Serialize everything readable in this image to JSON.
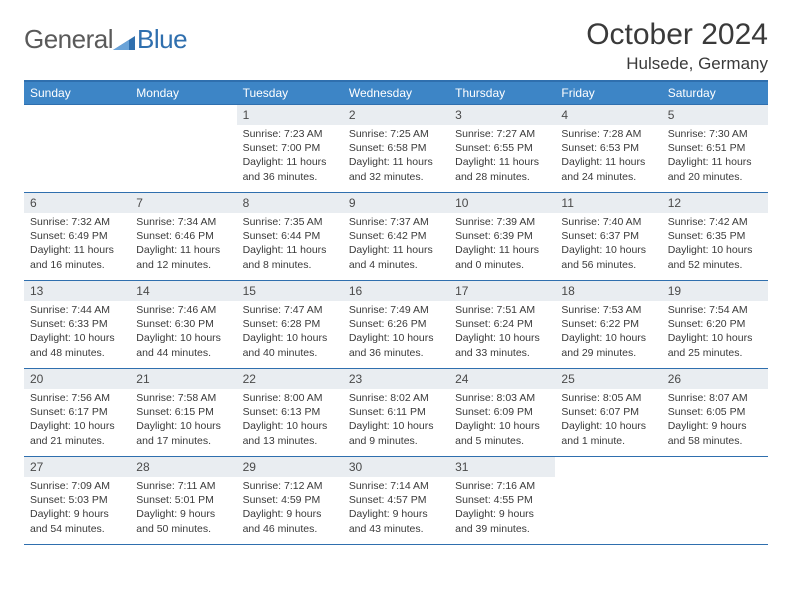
{
  "brand": {
    "part1": "General",
    "part2": "Blue"
  },
  "title": "October 2024",
  "location": "Hulsede, Germany",
  "colors": {
    "accent": "#3d85c6",
    "rule": "#2f6fae",
    "dayhdr_bg": "#e9edf1",
    "text": "#3a3a3a"
  },
  "weekdays": [
    "Sunday",
    "Monday",
    "Tuesday",
    "Wednesday",
    "Thursday",
    "Friday",
    "Saturday"
  ],
  "weeks": [
    [
      null,
      null,
      {
        "n": "1",
        "sr": "Sunrise: 7:23 AM",
        "ss": "Sunset: 7:00 PM",
        "dl": "Daylight: 11 hours and 36 minutes."
      },
      {
        "n": "2",
        "sr": "Sunrise: 7:25 AM",
        "ss": "Sunset: 6:58 PM",
        "dl": "Daylight: 11 hours and 32 minutes."
      },
      {
        "n": "3",
        "sr": "Sunrise: 7:27 AM",
        "ss": "Sunset: 6:55 PM",
        "dl": "Daylight: 11 hours and 28 minutes."
      },
      {
        "n": "4",
        "sr": "Sunrise: 7:28 AM",
        "ss": "Sunset: 6:53 PM",
        "dl": "Daylight: 11 hours and 24 minutes."
      },
      {
        "n": "5",
        "sr": "Sunrise: 7:30 AM",
        "ss": "Sunset: 6:51 PM",
        "dl": "Daylight: 11 hours and 20 minutes."
      }
    ],
    [
      {
        "n": "6",
        "sr": "Sunrise: 7:32 AM",
        "ss": "Sunset: 6:49 PM",
        "dl": "Daylight: 11 hours and 16 minutes."
      },
      {
        "n": "7",
        "sr": "Sunrise: 7:34 AM",
        "ss": "Sunset: 6:46 PM",
        "dl": "Daylight: 11 hours and 12 minutes."
      },
      {
        "n": "8",
        "sr": "Sunrise: 7:35 AM",
        "ss": "Sunset: 6:44 PM",
        "dl": "Daylight: 11 hours and 8 minutes."
      },
      {
        "n": "9",
        "sr": "Sunrise: 7:37 AM",
        "ss": "Sunset: 6:42 PM",
        "dl": "Daylight: 11 hours and 4 minutes."
      },
      {
        "n": "10",
        "sr": "Sunrise: 7:39 AM",
        "ss": "Sunset: 6:39 PM",
        "dl": "Daylight: 11 hours and 0 minutes."
      },
      {
        "n": "11",
        "sr": "Sunrise: 7:40 AM",
        "ss": "Sunset: 6:37 PM",
        "dl": "Daylight: 10 hours and 56 minutes."
      },
      {
        "n": "12",
        "sr": "Sunrise: 7:42 AM",
        "ss": "Sunset: 6:35 PM",
        "dl": "Daylight: 10 hours and 52 minutes."
      }
    ],
    [
      {
        "n": "13",
        "sr": "Sunrise: 7:44 AM",
        "ss": "Sunset: 6:33 PM",
        "dl": "Daylight: 10 hours and 48 minutes."
      },
      {
        "n": "14",
        "sr": "Sunrise: 7:46 AM",
        "ss": "Sunset: 6:30 PM",
        "dl": "Daylight: 10 hours and 44 minutes."
      },
      {
        "n": "15",
        "sr": "Sunrise: 7:47 AM",
        "ss": "Sunset: 6:28 PM",
        "dl": "Daylight: 10 hours and 40 minutes."
      },
      {
        "n": "16",
        "sr": "Sunrise: 7:49 AM",
        "ss": "Sunset: 6:26 PM",
        "dl": "Daylight: 10 hours and 36 minutes."
      },
      {
        "n": "17",
        "sr": "Sunrise: 7:51 AM",
        "ss": "Sunset: 6:24 PM",
        "dl": "Daylight: 10 hours and 33 minutes."
      },
      {
        "n": "18",
        "sr": "Sunrise: 7:53 AM",
        "ss": "Sunset: 6:22 PM",
        "dl": "Daylight: 10 hours and 29 minutes."
      },
      {
        "n": "19",
        "sr": "Sunrise: 7:54 AM",
        "ss": "Sunset: 6:20 PM",
        "dl": "Daylight: 10 hours and 25 minutes."
      }
    ],
    [
      {
        "n": "20",
        "sr": "Sunrise: 7:56 AM",
        "ss": "Sunset: 6:17 PM",
        "dl": "Daylight: 10 hours and 21 minutes."
      },
      {
        "n": "21",
        "sr": "Sunrise: 7:58 AM",
        "ss": "Sunset: 6:15 PM",
        "dl": "Daylight: 10 hours and 17 minutes."
      },
      {
        "n": "22",
        "sr": "Sunrise: 8:00 AM",
        "ss": "Sunset: 6:13 PM",
        "dl": "Daylight: 10 hours and 13 minutes."
      },
      {
        "n": "23",
        "sr": "Sunrise: 8:02 AM",
        "ss": "Sunset: 6:11 PM",
        "dl": "Daylight: 10 hours and 9 minutes."
      },
      {
        "n": "24",
        "sr": "Sunrise: 8:03 AM",
        "ss": "Sunset: 6:09 PM",
        "dl": "Daylight: 10 hours and 5 minutes."
      },
      {
        "n": "25",
        "sr": "Sunrise: 8:05 AM",
        "ss": "Sunset: 6:07 PM",
        "dl": "Daylight: 10 hours and 1 minute."
      },
      {
        "n": "26",
        "sr": "Sunrise: 8:07 AM",
        "ss": "Sunset: 6:05 PM",
        "dl": "Daylight: 9 hours and 58 minutes."
      }
    ],
    [
      {
        "n": "27",
        "sr": "Sunrise: 7:09 AM",
        "ss": "Sunset: 5:03 PM",
        "dl": "Daylight: 9 hours and 54 minutes."
      },
      {
        "n": "28",
        "sr": "Sunrise: 7:11 AM",
        "ss": "Sunset: 5:01 PM",
        "dl": "Daylight: 9 hours and 50 minutes."
      },
      {
        "n": "29",
        "sr": "Sunrise: 7:12 AM",
        "ss": "Sunset: 4:59 PM",
        "dl": "Daylight: 9 hours and 46 minutes."
      },
      {
        "n": "30",
        "sr": "Sunrise: 7:14 AM",
        "ss": "Sunset: 4:57 PM",
        "dl": "Daylight: 9 hours and 43 minutes."
      },
      {
        "n": "31",
        "sr": "Sunrise: 7:16 AM",
        "ss": "Sunset: 4:55 PM",
        "dl": "Daylight: 9 hours and 39 minutes."
      },
      null,
      null
    ]
  ]
}
